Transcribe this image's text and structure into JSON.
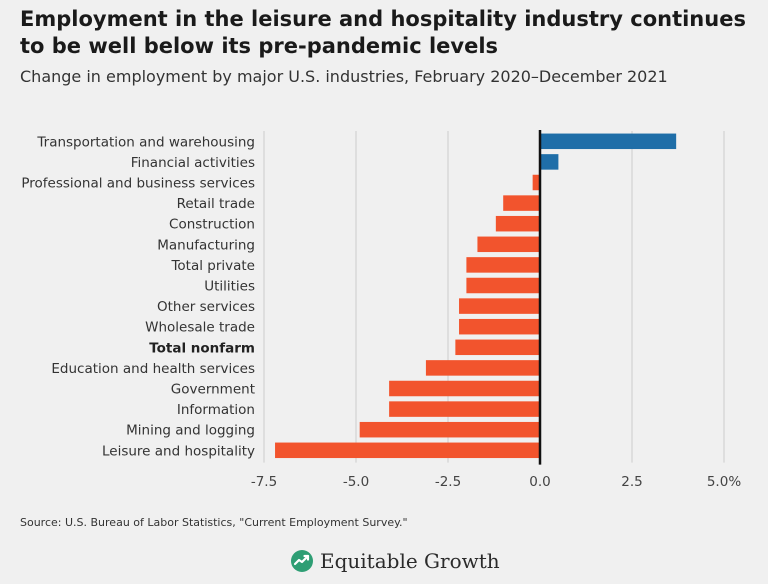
{
  "title": "Employment in the leisure and hospitality industry continues to be well below its pre-pandemic levels",
  "subtitle": "Change in employment by major U.S. industries, February 2020–December 2021",
  "source": "Source: U.S. Bureau of Labor Statistics, \"Current Employment Survey.\"",
  "brand": {
    "name": "Equitable Growth",
    "icon": "leaf-logo-icon"
  },
  "colors": {
    "positive": "#1f6ea8",
    "negative": "#f2542d",
    "zero_line": "#111111",
    "grid": "#cccccc",
    "background": "#f0f0f0"
  },
  "chart_data": {
    "type": "bar",
    "orientation": "horizontal",
    "title": "Employment in the leisure and hospitality industry continues to be well below its pre-pandemic levels",
    "subtitle": "Change in employment by major U.S. industries, February 2020–December 2021",
    "xlabel": "",
    "ylabel": "",
    "xlim": [
      -7.5,
      5.0
    ],
    "xticks": [
      -7.5,
      -5.0,
      -2.5,
      0.0,
      2.5,
      5.0
    ],
    "xtick_labels": [
      "-7.5",
      "-5.0",
      "-2.5",
      "0.0",
      "2.5",
      "5.0%"
    ],
    "grid": "vertical",
    "highlight": "Total nonfarm",
    "categories": [
      "Transportation and warehousing",
      "Financial activities",
      "Professional and business services",
      "Retail trade",
      "Construction",
      "Manufacturing",
      "Total private",
      "Utilities",
      "Other services",
      "Wholesale trade",
      "Total nonfarm",
      "Education and health services",
      "Government",
      "Information",
      "Mining and logging",
      "Leisure and hospitality"
    ],
    "values": [
      3.7,
      0.5,
      -0.2,
      -1.0,
      -1.2,
      -1.7,
      -2.0,
      -2.0,
      -2.2,
      -2.2,
      -2.3,
      -3.1,
      -4.1,
      -4.1,
      -4.9,
      -7.2
    ]
  }
}
